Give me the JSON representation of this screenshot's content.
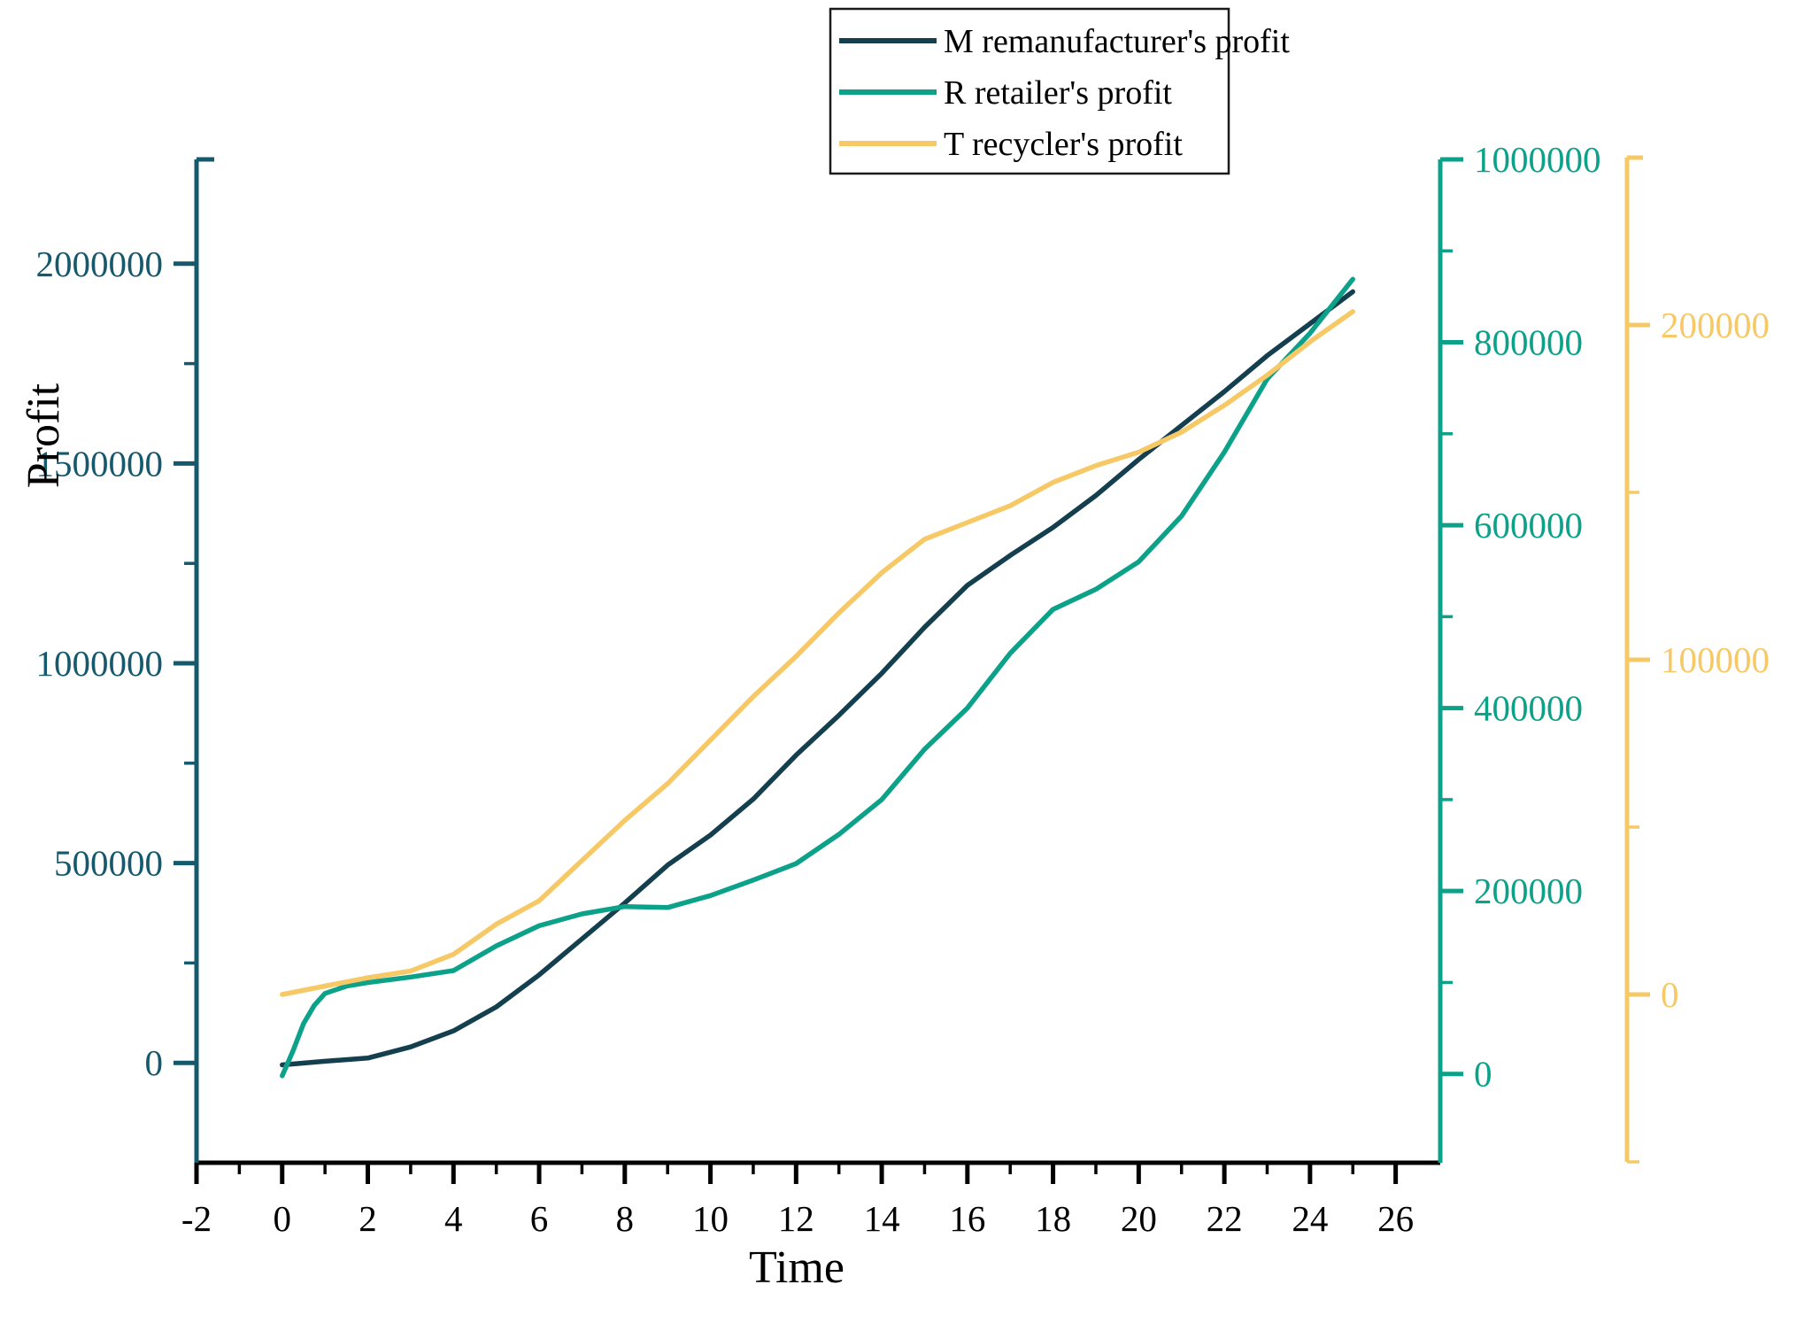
{
  "chart_data": {
    "type": "line",
    "title": "",
    "xlabel": "Time",
    "ylabel": "Profit",
    "background": "#ffffff",
    "x_axis": {
      "color": "#000000",
      "major_ticks": [
        -2,
        0,
        2,
        4,
        6,
        8,
        10,
        12,
        14,
        16,
        18,
        20,
        22,
        24,
        26
      ],
      "minor_step": 1,
      "range": [
        -2,
        27
      ]
    },
    "axes": {
      "left": {
        "label": "Profit",
        "color": "#16596c",
        "major_ticks": [
          0,
          500000,
          1000000,
          1500000,
          2000000
        ],
        "minor_ticks": [
          250000,
          750000,
          1250000,
          1750000
        ],
        "range": [
          -250000,
          2250000
        ]
      },
      "right_inner": {
        "color": "#0ca189",
        "major_ticks": [
          0,
          200000,
          400000,
          600000,
          800000,
          1000000
        ],
        "minor_ticks": [
          100000,
          300000,
          500000,
          700000,
          900000
        ],
        "range": [
          -100000,
          1000000
        ]
      },
      "right_outer": {
        "color": "#f6c966",
        "major_ticks": [
          0,
          100000,
          200000
        ],
        "minor_ticks": [
          -50000,
          50000,
          150000,
          250000
        ],
        "range": [
          -50000,
          250000
        ]
      }
    },
    "series": [
      {
        "name": "M remanufacturer's profit",
        "color": "#143f4e",
        "axis": "left",
        "x": [
          0,
          1,
          2,
          3,
          4,
          5,
          6,
          7,
          8,
          9,
          10,
          11,
          12,
          13,
          14,
          15,
          16,
          17,
          18,
          19,
          20,
          21,
          22,
          23,
          24,
          25
        ],
        "values": [
          -5000,
          4000,
          12000,
          40000,
          80000,
          140000,
          220000,
          310000,
          400000,
          495000,
          570000,
          660000,
          770000,
          870000,
          975000,
          1090000,
          1195000,
          1270000,
          1340000,
          1420000,
          1510000,
          1595000,
          1680000,
          1770000,
          1850000,
          1930000
        ]
      },
      {
        "name": "R retailer's profit",
        "color": "#0ca189",
        "axis": "right_inner",
        "x": [
          0,
          0.25,
          0.5,
          0.75,
          1,
          1.5,
          2,
          3,
          4,
          5,
          6,
          7,
          8,
          9,
          10,
          11,
          12,
          13,
          14,
          15,
          16,
          17,
          18,
          19,
          20,
          21,
          22,
          23,
          24,
          25
        ],
        "values": [
          -2000,
          25000,
          55000,
          75000,
          88000,
          96000,
          100000,
          106000,
          113000,
          140000,
          162000,
          175000,
          183000,
          182000,
          195000,
          212000,
          230000,
          262000,
          300000,
          355000,
          400000,
          460000,
          508000,
          530000,
          560000,
          610000,
          680000,
          760000,
          810000,
          869000
        ]
      },
      {
        "name": "T recycler's profit",
        "color": "#f6c966",
        "axis": "right_outer",
        "x": [
          0,
          1,
          2,
          3,
          4,
          5,
          6,
          7,
          8,
          9,
          10,
          11,
          12,
          13,
          14,
          15,
          16,
          17,
          18,
          19,
          20,
          21,
          22,
          23,
          24,
          25
        ],
        "values": [
          0,
          2500,
          5000,
          7000,
          12000,
          21000,
          28000,
          40000,
          52000,
          63000,
          76000,
          89000,
          101000,
          114000,
          126000,
          136000,
          141000,
          146000,
          153000,
          158000,
          162000,
          168000,
          176000,
          185000,
          195000,
          204000
        ]
      }
    ],
    "legend": {
      "position": "top",
      "border_color": "#1a1a1a",
      "items": [
        "M remanufacturer's profit",
        "R retailer's profit",
        "T recycler's profit"
      ]
    },
    "grid": false
  }
}
